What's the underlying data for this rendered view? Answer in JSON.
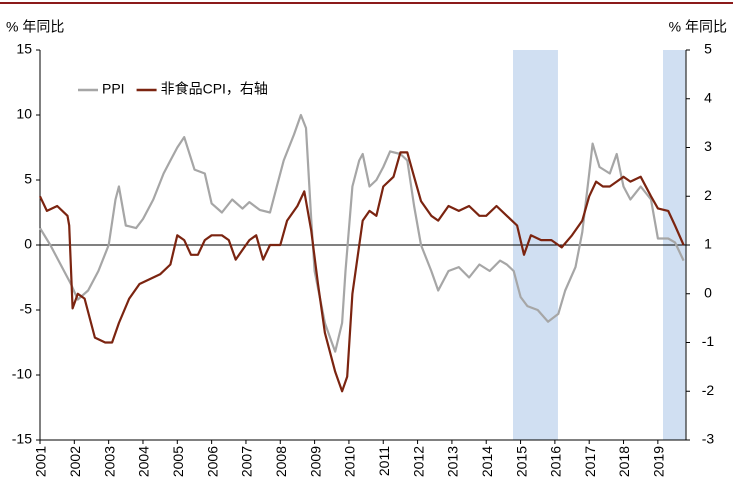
{
  "chart_data": {
    "type": "line",
    "y_label": "% 年同比",
    "y2_label": "% 年同比",
    "xlim": [
      2001,
      2019.82
    ],
    "xticks": [
      2001,
      2002,
      2003,
      2004,
      2005,
      2006,
      2007,
      2008,
      2009,
      2010,
      2011,
      2012,
      2013,
      2014,
      2015,
      2016,
      2017,
      2018,
      2019
    ],
    "ylim": [
      -15,
      15
    ],
    "yticks": [
      -15,
      -10,
      -5,
      0,
      5,
      10,
      15
    ],
    "y2lim": [
      -3,
      5
    ],
    "y2ticks": [
      -3,
      -2,
      -1,
      0,
      1,
      2,
      3,
      4,
      5
    ],
    "highlight_color": "#d0dff2",
    "highlight_ranges": [
      [
        2014.78,
        2016.09
      ],
      [
        2019.15,
        2019.8
      ]
    ],
    "legend": "upper left",
    "series": [
      {
        "name": "PPI",
        "color": "#a6a6a6",
        "axis": "y",
        "x": [
          2001.0,
          2001.3,
          2001.6,
          2001.9,
          2002.1,
          2002.4,
          2002.7,
          2003.0,
          2003.2,
          2003.3,
          2003.5,
          2003.8,
          2004.0,
          2004.3,
          2004.6,
          2004.8,
          2005.0,
          2005.2,
          2005.5,
          2005.8,
          2006.0,
          2006.3,
          2006.6,
          2006.9,
          2007.1,
          2007.4,
          2007.7,
          2007.9,
          2008.1,
          2008.4,
          2008.6,
          2008.75,
          2008.9,
          2009.0,
          2009.3,
          2009.5,
          2009.6,
          2009.8,
          2009.9,
          2010.1,
          2010.3,
          2010.4,
          2010.6,
          2010.8,
          2011.0,
          2011.2,
          2011.5,
          2011.7,
          2011.9,
          2012.1,
          2012.4,
          2012.6,
          2012.9,
          2013.2,
          2013.5,
          2013.8,
          2014.1,
          2014.4,
          2014.6,
          2014.8,
          2015.0,
          2015.2,
          2015.5,
          2015.8,
          2016.1,
          2016.3,
          2016.6,
          2016.8,
          2017.0,
          2017.1,
          2017.3,
          2017.6,
          2017.8,
          2018.0,
          2018.2,
          2018.5,
          2018.8,
          2019.0,
          2019.3,
          2019.5,
          2019.75
        ],
        "values": [
          1.3,
          0,
          -1.5,
          -3,
          -4.2,
          -3.5,
          -2,
          0,
          3.5,
          4.5,
          1.5,
          1.3,
          2,
          3.5,
          5.5,
          6.5,
          7.5,
          8.3,
          5.8,
          5.5,
          3.2,
          2.5,
          3.5,
          2.8,
          3.3,
          2.7,
          2.5,
          4.5,
          6.5,
          8.5,
          10,
          9,
          2,
          -2,
          -6,
          -7.5,
          -8.2,
          -6,
          -2,
          4.5,
          6.5,
          7,
          4.5,
          5,
          6,
          7.2,
          7,
          6.5,
          3,
          0,
          -2,
          -3.5,
          -2,
          -1.7,
          -2.5,
          -1.5,
          -2,
          -1.2,
          -1.5,
          -2,
          -4,
          -4.7,
          -5,
          -5.9,
          -5.3,
          -3.5,
          -1.7,
          1,
          5.5,
          7.8,
          6,
          5.5,
          7,
          4.5,
          3.5,
          4.5,
          3.5,
          0.5,
          0.5,
          0.2,
          -1.2
        ]
      },
      {
        "name": "非食品CPI，右轴",
        "color": "#7b2410",
        "axis": "y2",
        "x": [
          2001.0,
          2001.2,
          2001.5,
          2001.8,
          2001.85,
          2001.95,
          2002.1,
          2002.3,
          2002.6,
          2002.9,
          2003.1,
          2003.3,
          2003.6,
          2003.9,
          2004.2,
          2004.5,
          2004.8,
          2005.0,
          2005.2,
          2005.4,
          2005.6,
          2005.8,
          2006.0,
          2006.3,
          2006.5,
          2006.7,
          2006.9,
          2007.1,
          2007.3,
          2007.5,
          2007.7,
          2008.0,
          2008.2,
          2008.5,
          2008.7,
          2008.9,
          2009.1,
          2009.3,
          2009.6,
          2009.8,
          2009.95,
          2010.1,
          2010.4,
          2010.6,
          2010.8,
          2011.0,
          2011.3,
          2011.5,
          2011.7,
          2011.9,
          2012.1,
          2012.4,
          2012.6,
          2012.9,
          2013.2,
          2013.5,
          2013.8,
          2014.0,
          2014.3,
          2014.6,
          2014.9,
          2015.1,
          2015.3,
          2015.6,
          2015.9,
          2016.2,
          2016.5,
          2016.8,
          2017.0,
          2017.2,
          2017.4,
          2017.6,
          2017.8,
          2018.0,
          2018.2,
          2018.5,
          2018.8,
          2019.0,
          2019.3,
          2019.5,
          2019.75
        ],
        "values": [
          2.0,
          1.7,
          1.8,
          1.6,
          1.4,
          -0.3,
          0,
          -0.1,
          -0.9,
          -1,
          -1,
          -0.6,
          -0.1,
          0.2,
          0.3,
          0.4,
          0.6,
          1.2,
          1.1,
          0.8,
          0.8,
          1.1,
          1.2,
          1.2,
          1.1,
          0.7,
          0.9,
          1.1,
          1.2,
          0.7,
          1.0,
          1.0,
          1.5,
          1.8,
          2.1,
          1.3,
          0.2,
          -0.8,
          -1.6,
          -2,
          -1.7,
          0,
          1.5,
          1.7,
          1.6,
          2.2,
          2.4,
          2.9,
          2.9,
          2.4,
          1.9,
          1.6,
          1.5,
          1.8,
          1.7,
          1.8,
          1.6,
          1.6,
          1.8,
          1.6,
          1.4,
          0.8,
          1.2,
          1.1,
          1.1,
          0.95,
          1.2,
          1.5,
          2.0,
          2.3,
          2.2,
          2.2,
          2.3,
          2.4,
          2.3,
          2.4,
          2.0,
          1.75,
          1.7,
          1.4,
          1.0
        ]
      }
    ]
  }
}
